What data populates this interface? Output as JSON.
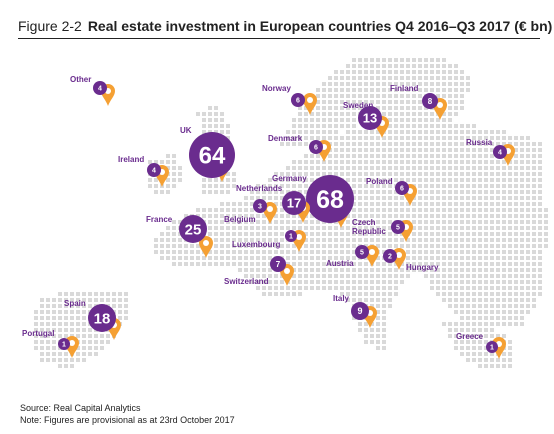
{
  "figure": {
    "label": "Figure 2-2",
    "title": "Real estate investment in European countries Q4 2016–Q3 2017 (€ bn)"
  },
  "colors": {
    "accent_purple": "#6a2c8e",
    "pin_orange": "#f5a033",
    "map_dots": "#d9d9d9",
    "label_purple": "#6a2c8e"
  },
  "countries": [
    {
      "name": "Other",
      "value": "4"
    },
    {
      "name": "Norway",
      "value": "6"
    },
    {
      "name": "Sweden",
      "value": "13"
    },
    {
      "name": "Finland",
      "value": "8"
    },
    {
      "name": "UK",
      "value": "64"
    },
    {
      "name": "Denmark",
      "value": "6"
    },
    {
      "name": "Russia",
      "value": "4"
    },
    {
      "name": "Ireland",
      "value": "4"
    },
    {
      "name": "Germany",
      "value": "68"
    },
    {
      "name": "Netherlands",
      "value": "17"
    },
    {
      "name": "Poland",
      "value": "6"
    },
    {
      "name": "Belgium",
      "value": "3"
    },
    {
      "name": "France",
      "value": "25"
    },
    {
      "name": "Czech Republic",
      "value": "5"
    },
    {
      "name": "Luxembourg",
      "value": "1"
    },
    {
      "name": "Austria",
      "value": "5"
    },
    {
      "name": "Hungary",
      "value": "2"
    },
    {
      "name": "Switzerland",
      "value": "7"
    },
    {
      "name": "Italy",
      "value": "9"
    },
    {
      "name": "Spain",
      "value": "18"
    },
    {
      "name": "Portugal",
      "value": "1"
    },
    {
      "name": "Greece",
      "value": "1"
    }
  ],
  "footer": {
    "source": "Source: Real Capital Analytics",
    "note": "Note: Figures are provisional as at 23rd October 2017"
  }
}
